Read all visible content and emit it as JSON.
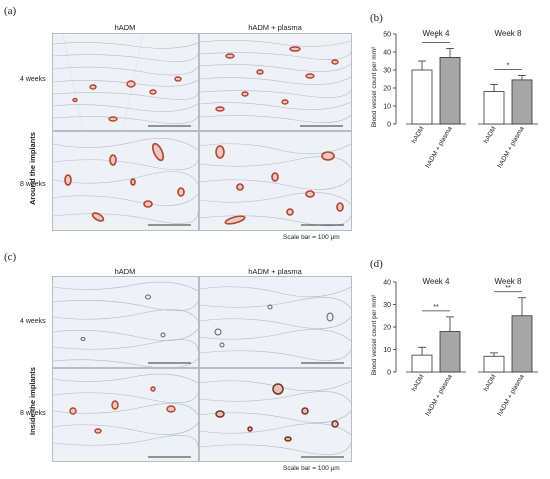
{
  "panels": {
    "a": {
      "letter": "(a)",
      "side_label": "Around the implants",
      "columns": [
        "hADM",
        "hADM + plasma"
      ],
      "rows": [
        "4 weeks",
        "8 weeks"
      ],
      "scale_text": "Scale bar = 100 µm"
    },
    "b": {
      "letter": "(b)"
    },
    "c": {
      "letter": "(c)",
      "side_label": "Inside the implants",
      "columns": [
        "hADM",
        "hADM + plasma"
      ],
      "rows": [
        "4 weeks",
        "8 weeks"
      ],
      "scale_text": "Scale bar = 100 µm"
    },
    "d": {
      "letter": "(d)"
    }
  },
  "colors": {
    "vessel": "#b5412f",
    "tissue_bg": "#eef1f6",
    "fiber": "#9fb0c8",
    "bar_open": "#ffffff",
    "bar_filled": "#a6a6a6"
  },
  "chart_data": [
    {
      "type": "bar",
      "ylabel": "Blood vessel count per mm²",
      "ylim": [
        0,
        50
      ],
      "yticks": [
        0,
        10,
        20,
        30,
        40,
        50
      ],
      "groups": [
        {
          "title": "Week 4",
          "categories": [
            "hADM",
            "hADM + plasma"
          ],
          "values": [
            30,
            37
          ],
          "errors": [
            5,
            5
          ],
          "significance": "*"
        },
        {
          "title": "Week 8",
          "categories": [
            "hADM",
            "hADM + plasma"
          ],
          "values": [
            18,
            24.5
          ],
          "errors": [
            4,
            2.5
          ],
          "significance": "*"
        }
      ]
    },
    {
      "type": "bar",
      "ylabel": "Blood vessel count per mm²",
      "ylim": [
        0,
        40
      ],
      "yticks": [
        0,
        10,
        20,
        30,
        40
      ],
      "groups": [
        {
          "title": "Week 4",
          "categories": [
            "hADM",
            "hADM + plasma"
          ],
          "values": [
            7.5,
            18
          ],
          "errors": [
            3.5,
            6.5
          ],
          "significance": "**"
        },
        {
          "title": "Week 8",
          "categories": [
            "hADM",
            "hADM + plasma"
          ],
          "values": [
            7,
            25
          ],
          "errors": [
            1.5,
            8
          ],
          "significance": "**"
        }
      ]
    }
  ]
}
